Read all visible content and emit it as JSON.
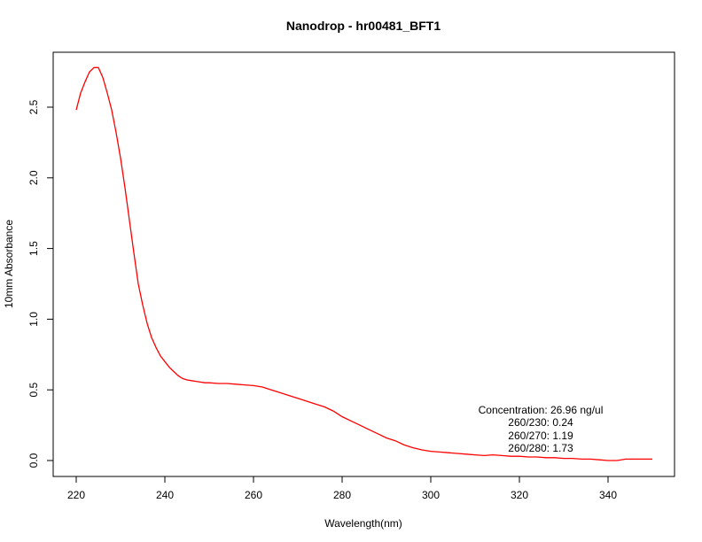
{
  "chart_data": {
    "type": "line",
    "title": "Nanodrop - hr00481_BFT1",
    "xlabel": "Wavelength(nm)",
    "ylabel": "10mm Absorbance",
    "xlim": [
      220,
      350
    ],
    "ylim": [
      -0.1,
      2.9
    ],
    "x_ticks": [
      220,
      240,
      260,
      280,
      300,
      320,
      340
    ],
    "y_ticks": [
      0.0,
      0.5,
      1.0,
      1.5,
      2.0,
      2.5
    ],
    "y_tick_labels": [
      "0.0",
      "0.5",
      "1.0",
      "1.5",
      "2.0",
      "2.5"
    ],
    "grid": false,
    "series_color": "#ff0000",
    "series": [
      {
        "x": [
          220,
          221,
          222,
          223,
          224,
          225,
          226,
          227,
          228,
          229,
          230,
          231,
          232,
          233,
          234,
          235,
          236,
          237,
          238,
          239,
          240,
          241,
          242,
          243,
          244,
          245,
          246,
          247,
          248,
          249,
          250,
          252,
          254,
          256,
          258,
          260,
          262,
          264,
          266,
          268,
          270,
          272,
          274,
          276,
          278,
          280,
          282,
          284,
          286,
          288,
          290,
          292,
          294,
          296,
          298,
          300,
          302,
          304,
          306,
          308,
          310,
          312,
          314,
          316,
          318,
          320,
          322,
          324,
          326,
          328,
          330,
          332,
          334,
          336,
          338,
          340,
          342,
          344,
          346,
          348,
          350
        ],
        "y": [
          2.48,
          2.6,
          2.68,
          2.75,
          2.78,
          2.78,
          2.71,
          2.6,
          2.48,
          2.32,
          2.14,
          1.93,
          1.7,
          1.47,
          1.25,
          1.1,
          0.97,
          0.87,
          0.8,
          0.74,
          0.7,
          0.66,
          0.63,
          0.6,
          0.58,
          0.57,
          0.565,
          0.56,
          0.555,
          0.55,
          0.55,
          0.545,
          0.545,
          0.54,
          0.535,
          0.53,
          0.52,
          0.5,
          0.48,
          0.46,
          0.44,
          0.42,
          0.4,
          0.38,
          0.35,
          0.31,
          0.28,
          0.25,
          0.22,
          0.19,
          0.16,
          0.14,
          0.11,
          0.09,
          0.075,
          0.065,
          0.06,
          0.055,
          0.05,
          0.045,
          0.04,
          0.035,
          0.04,
          0.035,
          0.03,
          0.03,
          0.025,
          0.025,
          0.02,
          0.02,
          0.015,
          0.015,
          0.01,
          0.01,
          0.005,
          0.0,
          0.0,
          0.01,
          0.01,
          0.01,
          0.01
        ]
      }
    ],
    "annotations": [
      "Concentration: 26.96 ng/ul",
      "260/230: 0.24",
      "260/270: 1.19",
      "260/280: 1.73"
    ]
  }
}
